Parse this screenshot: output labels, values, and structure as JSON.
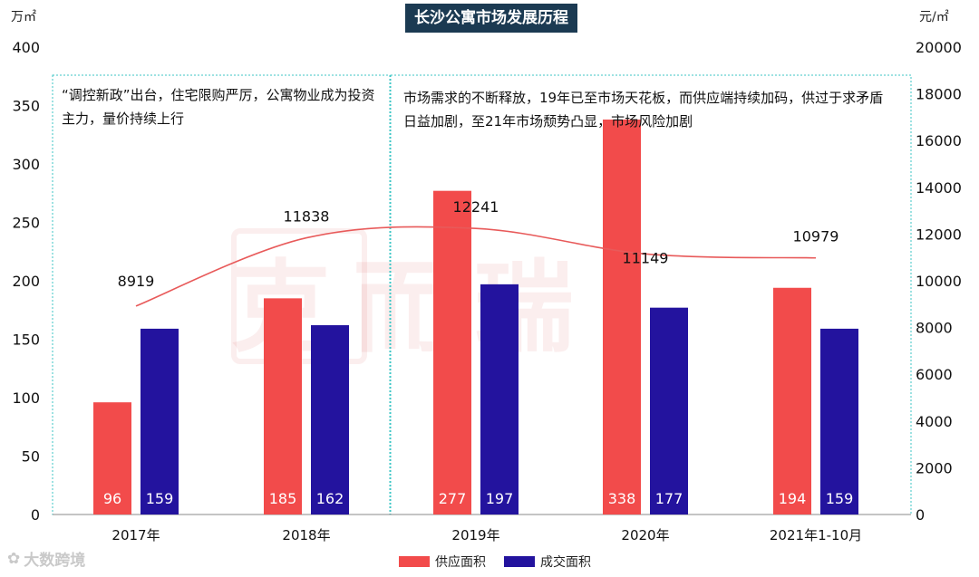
{
  "title": "长沙公寓市场发展历程",
  "left_unit": "万㎡",
  "right_unit": "元/㎡",
  "notes": [
    "“调控新政”出台，住宅限购严厉，公寓物业成为投资主力，量价持续上行",
    "市场需求的不断释放，19年已至市场天花板，而供应端持续加码，供过于求矛盾日益加剧，至21年市场颓势凸显，市场风险加剧"
  ],
  "watermark": "克而瑞",
  "logo_text": "大数跨境",
  "colors": {
    "supply": "#f24b4b",
    "deal": "#23139e",
    "price_line": "#e85a5a",
    "title_bg": "#1b3a52",
    "frame": "#3ec6c6"
  },
  "chart_data": {
    "type": "bar",
    "title": "长沙公寓市场发展历程",
    "categories": [
      "2017年",
      "2018年",
      "2019年",
      "2020年",
      "2021年1-10月"
    ],
    "series": [
      {
        "name": "供应面积",
        "axis": "left",
        "values": [
          96,
          185,
          277,
          338,
          194
        ]
      },
      {
        "name": "成交面积",
        "axis": "left",
        "values": [
          159,
          162,
          197,
          177,
          159
        ]
      },
      {
        "axis": "right",
        "type": "line",
        "values": [
          8919,
          11838,
          12241,
          11149,
          10979
        ]
      }
    ],
    "ylim_left": [
      0,
      400
    ],
    "yticks_left": [
      0,
      50,
      100,
      150,
      200,
      250,
      300,
      350,
      400
    ],
    "ylim_right": [
      0,
      20000
    ],
    "yticks_right": [
      0,
      2000,
      4000,
      6000,
      8000,
      10000,
      12000,
      14000,
      16000,
      18000,
      20000
    ],
    "legend": "bottom-center",
    "grid": false
  }
}
